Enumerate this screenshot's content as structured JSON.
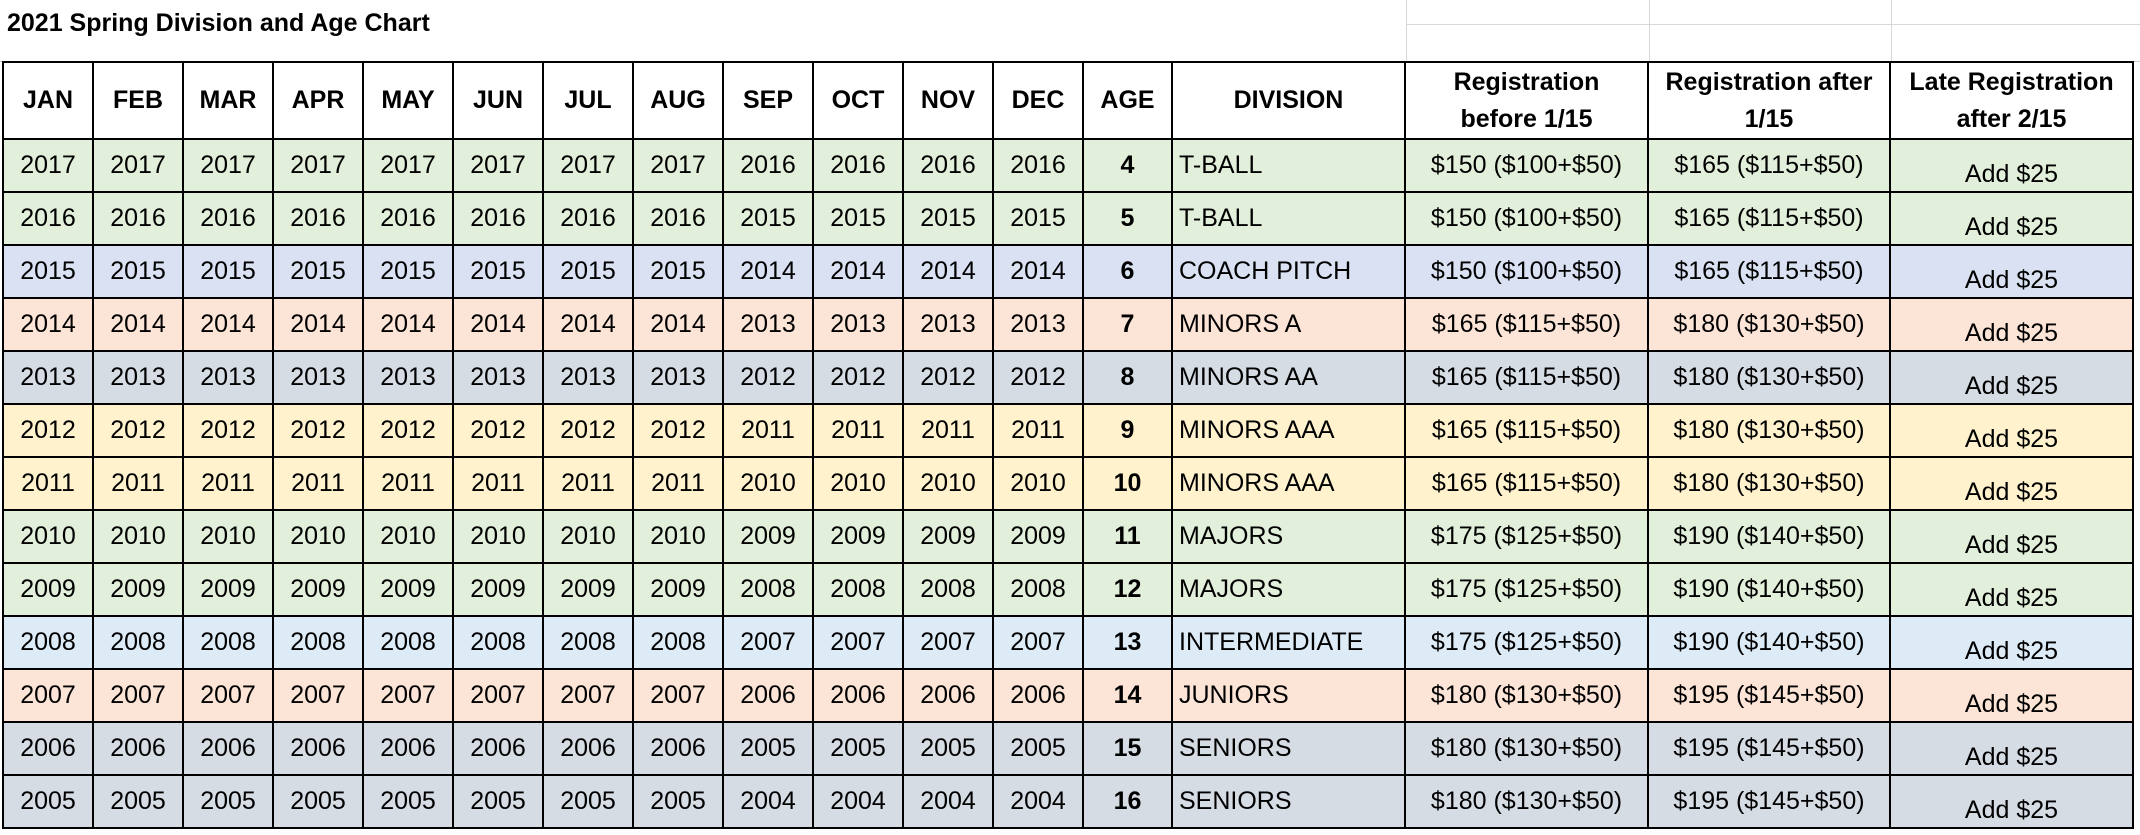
{
  "sheet": {
    "title": "2021 Spring Division and Age Chart"
  },
  "colors": {
    "green": "#e2efda",
    "blue": "#d9e1f2",
    "peach": "#fce4d6",
    "gray": "#d6dce4",
    "yellow": "#fff2cc",
    "light_blue": "#ddebf7"
  },
  "columns": [
    "JAN",
    "FEB",
    "MAR",
    "APR",
    "MAY",
    "JUN",
    "JUL",
    "AUG",
    "SEP",
    "OCT",
    "NOV",
    "DEC",
    "AGE",
    "DIVISION",
    "Registration before 1/15",
    "Registration after 1/15",
    "Late Registration after 2/15"
  ],
  "rows": [
    {
      "months": [
        "2017",
        "2017",
        "2017",
        "2017",
        "2017",
        "2017",
        "2017",
        "2017",
        "2016",
        "2016",
        "2016",
        "2016"
      ],
      "age": "4",
      "division": "T-BALL",
      "reg_before": "$150 ($100+$50)",
      "reg_after": "$165 ($115+$50)",
      "late": "Add $25",
      "color": "#e2efda"
    },
    {
      "months": [
        "2016",
        "2016",
        "2016",
        "2016",
        "2016",
        "2016",
        "2016",
        "2016",
        "2015",
        "2015",
        "2015",
        "2015"
      ],
      "age": "5",
      "division": "T-BALL",
      "reg_before": "$150 ($100+$50)",
      "reg_after": "$165 ($115+$50)",
      "late": "Add $25",
      "color": "#e2efda"
    },
    {
      "months": [
        "2015",
        "2015",
        "2015",
        "2015",
        "2015",
        "2015",
        "2015",
        "2015",
        "2014",
        "2014",
        "2014",
        "2014"
      ],
      "age": "6",
      "division": "COACH PITCH",
      "reg_before": "$150 ($100+$50)",
      "reg_after": "$165 ($115+$50)",
      "late": "Add $25",
      "color": "#d9e1f2"
    },
    {
      "months": [
        "2014",
        "2014",
        "2014",
        "2014",
        "2014",
        "2014",
        "2014",
        "2014",
        "2013",
        "2013",
        "2013",
        "2013"
      ],
      "age": "7",
      "division": "MINORS A",
      "reg_before": "$165 ($115+$50)",
      "reg_after": "$180 ($130+$50)",
      "late": "Add $25",
      "color": "#fce4d6"
    },
    {
      "months": [
        "2013",
        "2013",
        "2013",
        "2013",
        "2013",
        "2013",
        "2013",
        "2013",
        "2012",
        "2012",
        "2012",
        "2012"
      ],
      "age": "8",
      "division": "MINORS AA",
      "reg_before": "$165 ($115+$50)",
      "reg_after": "$180 ($130+$50)",
      "late": "Add $25",
      "color": "#d6dce4"
    },
    {
      "months": [
        "2012",
        "2012",
        "2012",
        "2012",
        "2012",
        "2012",
        "2012",
        "2012",
        "2011",
        "2011",
        "2011",
        "2011"
      ],
      "age": "9",
      "division": "MINORS AAA",
      "reg_before": "$165 ($115+$50)",
      "reg_after": "$180 ($130+$50)",
      "late": "Add $25",
      "color": "#fff2cc"
    },
    {
      "months": [
        "2011",
        "2011",
        "2011",
        "2011",
        "2011",
        "2011",
        "2011",
        "2011",
        "2010",
        "2010",
        "2010",
        "2010"
      ],
      "age": "10",
      "division": "MINORS AAA",
      "reg_before": "$165 ($115+$50)",
      "reg_after": "$180 ($130+$50)",
      "late": "Add $25",
      "color": "#fff2cc"
    },
    {
      "months": [
        "2010",
        "2010",
        "2010",
        "2010",
        "2010",
        "2010",
        "2010",
        "2010",
        "2009",
        "2009",
        "2009",
        "2009"
      ],
      "age": "11",
      "division": "MAJORS",
      "reg_before": "$175 ($125+$50)",
      "reg_after": "$190 ($140+$50)",
      "late": "Add $25",
      "color": "#e2efda"
    },
    {
      "months": [
        "2009",
        "2009",
        "2009",
        "2009",
        "2009",
        "2009",
        "2009",
        "2009",
        "2008",
        "2008",
        "2008",
        "2008"
      ],
      "age": "12",
      "division": "MAJORS",
      "reg_before": "$175 ($125+$50)",
      "reg_after": "$190 ($140+$50)",
      "late": "Add $25",
      "color": "#e2efda"
    },
    {
      "months": [
        "2008",
        "2008",
        "2008",
        "2008",
        "2008",
        "2008",
        "2008",
        "2008",
        "2007",
        "2007",
        "2007",
        "2007"
      ],
      "age": "13",
      "division": "INTERMEDIATE",
      "reg_before": "$175 ($125+$50)",
      "reg_after": "$190 ($140+$50)",
      "late": "Add $25",
      "color": "#ddebf7"
    },
    {
      "months": [
        "2007",
        "2007",
        "2007",
        "2007",
        "2007",
        "2007",
        "2007",
        "2007",
        "2006",
        "2006",
        "2006",
        "2006"
      ],
      "age": "14",
      "division": "JUNIORS",
      "reg_before": "$180 ($130+$50)",
      "reg_after": "$195 ($145+$50)",
      "late": "Add $25",
      "color": "#fce4d6"
    },
    {
      "months": [
        "2006",
        "2006",
        "2006",
        "2006",
        "2006",
        "2006",
        "2006",
        "2006",
        "2005",
        "2005",
        "2005",
        "2005"
      ],
      "age": "15",
      "division": "SENIORS",
      "reg_before": "$180 ($130+$50)",
      "reg_after": "$195 ($145+$50)",
      "late": "Add $25",
      "color": "#d6dce4"
    },
    {
      "months": [
        "2005",
        "2005",
        "2005",
        "2005",
        "2005",
        "2005",
        "2005",
        "2005",
        "2004",
        "2004",
        "2004",
        "2004"
      ],
      "age": "16",
      "division": "SENIORS",
      "reg_before": "$180 ($130+$50)",
      "reg_after": "$195 ($145+$50)",
      "late": "Add $25",
      "color": "#d6dce4"
    }
  ]
}
